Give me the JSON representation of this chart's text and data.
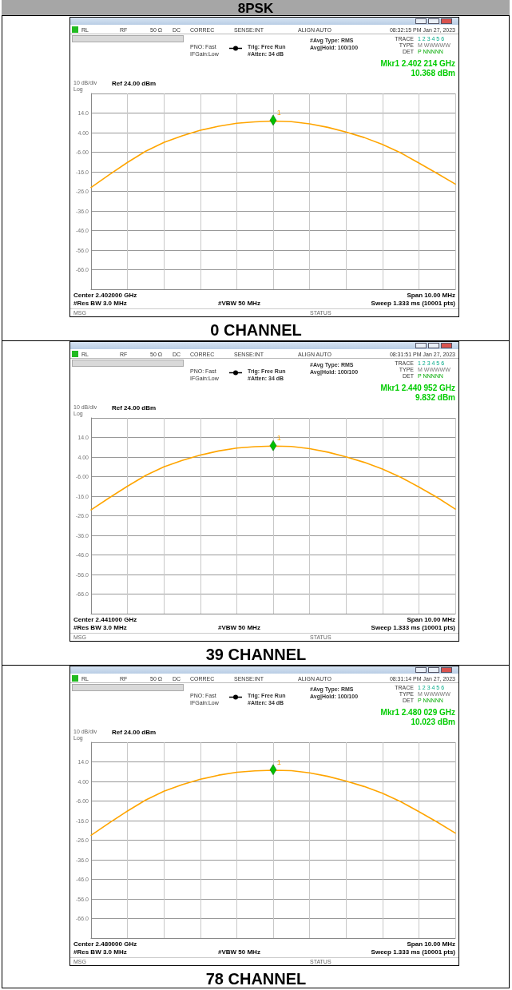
{
  "chart_data": [
    {
      "type": "line",
      "subtitle": "8PSK",
      "title": "0 CHANNEL",
      "marker": "none",
      "grid": true,
      "tick_labels": "y",
      "categories": [
        null,
        null,
        null,
        null,
        null,
        null,
        null,
        null,
        null,
        null,
        null,
        null,
        null,
        null,
        null,
        null,
        null,
        null,
        null,
        null,
        null
      ],
      "ylim": [
        -76,
        24
      ],
      "yticks": [
        {
          "value": 24,
          "label": null
        },
        {
          "value": 14,
          "label": "14.0"
        },
        {
          "value": 4,
          "label": "4.00"
        },
        {
          "value": -6,
          "label": "-6.00"
        },
        {
          "value": -16,
          "label": "-16.0"
        },
        {
          "value": -26,
          "label": "-26.0"
        },
        {
          "value": -36,
          "label": "-36.0"
        },
        {
          "value": -46,
          "label": "-46.0"
        },
        {
          "value": -56,
          "label": "-56.0"
        },
        {
          "value": -66,
          "label": "-66.0"
        },
        {
          "value": -76,
          "label": null
        }
      ],
      "series": [
        {
          "color": "#ffa500",
          "values": [
            -24.0,
            -17.5,
            -11.2,
            -5.5,
            -1.0,
            2.4,
            5.2,
            7.3,
            8.8,
            9.5,
            9.9,
            9.6,
            8.5,
            6.7,
            4.3,
            1.5,
            -2.0,
            -6.3,
            -11.5,
            -16.8,
            -22.3
          ]
        }
      ],
      "annotations": [
        "RL",
        "RF",
        "50 Ω",
        "DC",
        "CORREC",
        "SENSE:INT",
        "ALIGN AUTO",
        "08:32:15 PM Jan 27, 2023",
        "PNO: Fast",
        "IFGain:Low",
        "Trig: Free Run",
        "#Atten: 34 dB",
        "#Avg Type: RMS",
        "Avg|Hold: 100/100",
        "TRACE",
        "1 2 3 4 5 6",
        "TYPE",
        "M WWWWW",
        "DET",
        "P NNNNN",
        "Mkr1 2.402 214 GHz",
        "10.368 dBm",
        "10 dB/div",
        "Log",
        "Ref 24.00 dBm",
        "Center 2.402000 GHz",
        "Span 10.00 MHz",
        "#Res BW 3.0 MHz",
        "#VBW 50 MHz",
        "Sweep  1.333 ms (10001 pts)",
        "MSG",
        "STATUS",
        {
          "text": "1",
          "y": 10.368
        }
      ]
    },
    {
      "type": "line",
      "title": "39 CHANNEL",
      "marker": "none",
      "grid": true,
      "tick_labels": "y",
      "categories": [
        null,
        null,
        null,
        null,
        null,
        null,
        null,
        null,
        null,
        null,
        null,
        null,
        null,
        null,
        null,
        null,
        null,
        null,
        null,
        null,
        null
      ],
      "ylim": [
        -76,
        24
      ],
      "yticks": [
        {
          "value": 24,
          "label": null
        },
        {
          "value": 14,
          "label": "14.0"
        },
        {
          "value": 4,
          "label": "4.00"
        },
        {
          "value": -6,
          "label": "-6.00"
        },
        {
          "value": -16,
          "label": "-16.0"
        },
        {
          "value": -26,
          "label": "-26.0"
        },
        {
          "value": -36,
          "label": "-36.0"
        },
        {
          "value": -46,
          "label": "-46.0"
        },
        {
          "value": -56,
          "label": "-56.0"
        },
        {
          "value": -66,
          "label": "-66.0"
        },
        {
          "value": -76,
          "label": null
        }
      ],
      "series": [
        {
          "color": "#ffa500",
          "values": [
            -23.0,
            -16.8,
            -10.9,
            -5.4,
            -1.0,
            2.3,
            5.0,
            7.1,
            8.6,
            9.3,
            9.6,
            9.4,
            8.3,
            6.5,
            4.1,
            1.3,
            -2.1,
            -6.3,
            -11.3,
            -16.6,
            -22.6
          ]
        }
      ],
      "annotations": [
        "RL",
        "RF",
        "50 Ω",
        "DC",
        "CORREC",
        "SENSE:INT",
        "ALIGN AUTO",
        "08:31:51 PM Jan 27, 2023",
        "PNO: Fast",
        "IFGain:Low",
        "Trig: Free Run",
        "#Atten: 34 dB",
        "#Avg Type: RMS",
        "Avg|Hold: 100/100",
        "TRACE",
        "1 2 3 4 5 6",
        "TYPE",
        "M WWWWW",
        "DET",
        "P NNNNN",
        "Mkr1 2.440 952 GHz",
        "9.832 dBm",
        "10 dB/div",
        "Log",
        "Ref 24.00 dBm",
        "Center 2.441000 GHz",
        "Span 10.00 MHz",
        "#Res BW 3.0 MHz",
        "#VBW 50 MHz",
        "Sweep  1.333 ms (10001 pts)",
        "MSG",
        "STATUS",
        {
          "text": "1",
          "y": 9.832
        }
      ]
    },
    {
      "type": "line",
      "title": "78 CHANNEL",
      "marker": "none",
      "grid": true,
      "tick_labels": "y",
      "categories": [
        null,
        null,
        null,
        null,
        null,
        null,
        null,
        null,
        null,
        null,
        null,
        null,
        null,
        null,
        null,
        null,
        null,
        null,
        null,
        null,
        null
      ],
      "ylim": [
        -76,
        24
      ],
      "yticks": [
        {
          "value": 24,
          "label": null
        },
        {
          "value": 14,
          "label": "14.0"
        },
        {
          "value": 4,
          "label": "4.00"
        },
        {
          "value": -6,
          "label": "-6.00"
        },
        {
          "value": -16,
          "label": "-16.0"
        },
        {
          "value": -26,
          "label": "-26.0"
        },
        {
          "value": -36,
          "label": "-36.0"
        },
        {
          "value": -46,
          "label": "-46.0"
        },
        {
          "value": -56,
          "label": "-56.0"
        },
        {
          "value": -66,
          "label": "-66.0"
        },
        {
          "value": -76,
          "label": null
        }
      ],
      "series": [
        {
          "color": "#ffa500",
          "values": [
            -23.5,
            -17.2,
            -11.1,
            -5.5,
            -1.0,
            2.4,
            5.1,
            7.2,
            8.7,
            9.4,
            9.7,
            9.5,
            8.4,
            6.6,
            4.2,
            1.4,
            -2.0,
            -6.3,
            -11.4,
            -16.7,
            -22.4
          ]
        }
      ],
      "annotations": [
        "RL",
        "RF",
        "50 Ω",
        "DC",
        "CORREC",
        "SENSE:INT",
        "ALIGN AUTO",
        "08:31:14 PM Jan 27, 2023",
        "PNO: Fast",
        "IFGain:Low",
        "Trig: Free Run",
        "#Atten: 34 dB",
        "#Avg Type: RMS",
        "Avg|Hold: 100/100",
        "TRACE",
        "1 2 3 4 5 6",
        "TYPE",
        "M WWWWW",
        "DET",
        "P NNNNN",
        "Mkr1 2.480 029 GHz",
        "10.023 dBm",
        "10 dB/div",
        "Log",
        "Ref 24.00 dBm",
        "Center 2.480000 GHz",
        "Span 10.00 MHz",
        "#Res BW 3.0 MHz",
        "#VBW 50 MHz",
        "Sweep  1.333 ms (10001 pts)",
        "MSG",
        "STATUS",
        {
          "text": "1",
          "y": 10.023
        }
      ]
    }
  ]
}
